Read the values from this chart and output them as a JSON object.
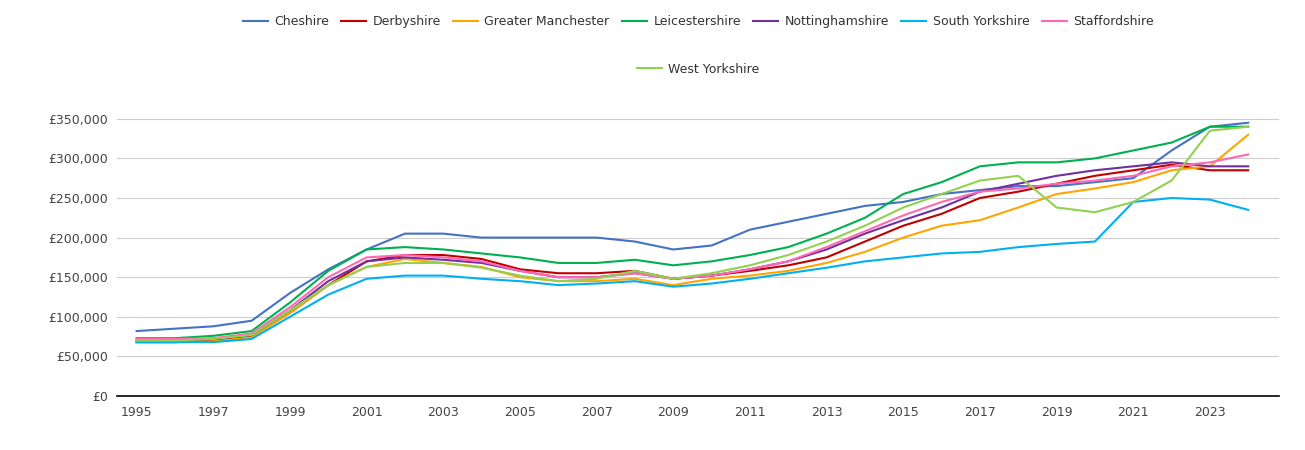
{
  "series": {
    "Cheshire": {
      "color": "#4472C4",
      "values": [
        82000,
        85000,
        88000,
        95000,
        130000,
        160000,
        185000,
        205000,
        205000,
        200000,
        200000,
        200000,
        200000,
        195000,
        185000,
        190000,
        210000,
        220000,
        230000,
        240000,
        245000,
        255000,
        260000,
        265000,
        265000,
        270000,
        275000,
        310000,
        340000,
        345000
      ]
    },
    "Derbyshire": {
      "color": "#C00000",
      "values": [
        68000,
        68000,
        70000,
        75000,
        105000,
        140000,
        170000,
        178000,
        178000,
        173000,
        160000,
        155000,
        155000,
        158000,
        148000,
        152000,
        158000,
        165000,
        175000,
        195000,
        215000,
        230000,
        250000,
        258000,
        268000,
        278000,
        285000,
        292000,
        285000,
        285000
      ]
    },
    "Greater Manchester": {
      "color": "#FFA500",
      "values": [
        68000,
        68000,
        69000,
        74000,
        105000,
        140000,
        163000,
        173000,
        168000,
        163000,
        150000,
        145000,
        145000,
        148000,
        140000,
        148000,
        152000,
        158000,
        168000,
        182000,
        200000,
        215000,
        222000,
        238000,
        255000,
        262000,
        270000,
        285000,
        290000,
        330000
      ]
    },
    "Leicestershire": {
      "color": "#00B050",
      "values": [
        73000,
        73000,
        76000,
        82000,
        118000,
        158000,
        185000,
        188000,
        185000,
        180000,
        175000,
        168000,
        168000,
        172000,
        165000,
        170000,
        178000,
        188000,
        205000,
        225000,
        255000,
        270000,
        290000,
        295000,
        295000,
        300000,
        310000,
        320000,
        340000,
        340000
      ]
    },
    "Nottinghamshire": {
      "color": "#7030A0",
      "values": [
        70000,
        70000,
        72000,
        77000,
        108000,
        145000,
        170000,
        175000,
        172000,
        168000,
        158000,
        150000,
        150000,
        155000,
        148000,
        152000,
        160000,
        170000,
        185000,
        205000,
        222000,
        238000,
        258000,
        268000,
        278000,
        285000,
        290000,
        295000,
        290000,
        290000
      ]
    },
    "South Yorkshire": {
      "color": "#00B0F0",
      "values": [
        68000,
        68000,
        68000,
        72000,
        100000,
        128000,
        148000,
        152000,
        152000,
        148000,
        145000,
        140000,
        142000,
        145000,
        138000,
        142000,
        148000,
        155000,
        162000,
        170000,
        175000,
        180000,
        182000,
        188000,
        192000,
        195000,
        245000,
        250000,
        248000,
        235000
      ]
    },
    "Staffordshire": {
      "color": "#FF69B4",
      "values": [
        72000,
        72000,
        73000,
        79000,
        112000,
        150000,
        175000,
        178000,
        175000,
        170000,
        158000,
        150000,
        150000,
        155000,
        148000,
        152000,
        160000,
        170000,
        188000,
        208000,
        228000,
        245000,
        258000,
        262000,
        268000,
        272000,
        278000,
        290000,
        295000,
        305000
      ]
    },
    "West Yorkshire": {
      "color": "#92D050",
      "values": [
        70000,
        70000,
        72000,
        77000,
        108000,
        140000,
        163000,
        168000,
        168000,
        162000,
        152000,
        145000,
        148000,
        158000,
        148000,
        155000,
        165000,
        178000,
        195000,
        215000,
        238000,
        255000,
        272000,
        278000,
        238000,
        232000,
        245000,
        272000,
        335000,
        340000
      ]
    }
  },
  "years": [
    1995,
    1996,
    1997,
    1998,
    1999,
    2000,
    2001,
    2002,
    2003,
    2004,
    2005,
    2006,
    2007,
    2008,
    2009,
    2010,
    2011,
    2012,
    2013,
    2014,
    2015,
    2016,
    2017,
    2018,
    2019,
    2020,
    2021,
    2022,
    2023,
    2024
  ],
  "yticks": [
    0,
    50000,
    100000,
    150000,
    200000,
    250000,
    300000,
    350000
  ],
  "xticks": [
    1995,
    1997,
    1999,
    2001,
    2003,
    2005,
    2007,
    2009,
    2011,
    2013,
    2015,
    2017,
    2019,
    2021,
    2023
  ],
  "ylim": [
    0,
    375000
  ],
  "xlim": [
    1994.5,
    2024.8
  ],
  "background_color": "#ffffff",
  "grid_color": "#cccccc",
  "legend_row1": [
    "Cheshire",
    "Derbyshire",
    "Greater Manchester",
    "Leicestershire",
    "Nottinghamshire",
    "South Yorkshire",
    "Staffordshire"
  ],
  "legend_row2": [
    "West Yorkshire"
  ]
}
